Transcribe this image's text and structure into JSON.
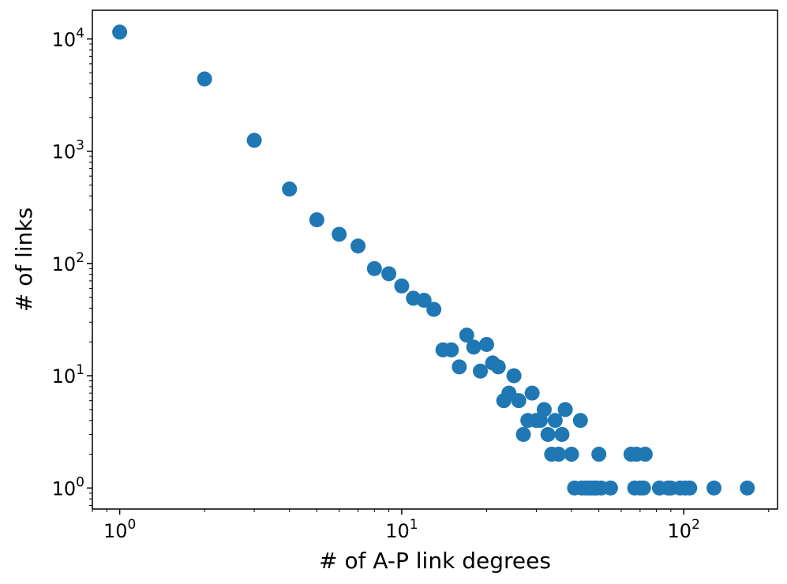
{
  "chart_data": {
    "type": "scatter",
    "title": "",
    "xlabel": "# of A-P link degrees",
    "ylabel": "# of links",
    "xscale": "log",
    "yscale": "log",
    "xlim": [
      0.8,
      215
    ],
    "ylim": [
      0.65,
      18000
    ],
    "grid": false,
    "legend": "none",
    "marker_color": "#1f77b4",
    "x_ticks": [
      {
        "base": "10",
        "exp": "0"
      },
      {
        "base": "10",
        "exp": "1"
      },
      {
        "base": "10",
        "exp": "2"
      }
    ],
    "y_ticks": [
      {
        "base": "10",
        "exp": "0"
      },
      {
        "base": "10",
        "exp": "1"
      },
      {
        "base": "10",
        "exp": "2"
      },
      {
        "base": "10",
        "exp": "3"
      },
      {
        "base": "10",
        "exp": "4"
      }
    ],
    "points": [
      [
        1,
        11500
      ],
      [
        2,
        4400
      ],
      [
        3,
        1250
      ],
      [
        4,
        460
      ],
      [
        5,
        245
      ],
      [
        6,
        182
      ],
      [
        7,
        143
      ],
      [
        8,
        90
      ],
      [
        9,
        81
      ],
      [
        10,
        63
      ],
      [
        11,
        49
      ],
      [
        12,
        47
      ],
      [
        13,
        39
      ],
      [
        14,
        17
      ],
      [
        15,
        17
      ],
      [
        16,
        12
      ],
      [
        17,
        23
      ],
      [
        18,
        18
      ],
      [
        19,
        11
      ],
      [
        20,
        19
      ],
      [
        21,
        13
      ],
      [
        22,
        12
      ],
      [
        23,
        6
      ],
      [
        24,
        7
      ],
      [
        25,
        10
      ],
      [
        26,
        6
      ],
      [
        27,
        3
      ],
      [
        28,
        4
      ],
      [
        29,
        7
      ],
      [
        30,
        4
      ],
      [
        31,
        4
      ],
      [
        32,
        5
      ],
      [
        33,
        3
      ],
      [
        34,
        2
      ],
      [
        35,
        4
      ],
      [
        36,
        2
      ],
      [
        37,
        3
      ],
      [
        38,
        5
      ],
      [
        40,
        2
      ],
      [
        41,
        1
      ],
      [
        43,
        4
      ],
      [
        43.5,
        1
      ],
      [
        45,
        1
      ],
      [
        46,
        1
      ],
      [
        47,
        1
      ],
      [
        48,
        1
      ],
      [
        49,
        1
      ],
      [
        50,
        2
      ],
      [
        51,
        1
      ],
      [
        55,
        1
      ],
      [
        65,
        2
      ],
      [
        67,
        1
      ],
      [
        68,
        2
      ],
      [
        70,
        1
      ],
      [
        72,
        1
      ],
      [
        73,
        2
      ],
      [
        82,
        1
      ],
      [
        88,
        1
      ],
      [
        90,
        1
      ],
      [
        97,
        1
      ],
      [
        101,
        1
      ],
      [
        105,
        1
      ],
      [
        128,
        1
      ],
      [
        168,
        1
      ]
    ]
  }
}
